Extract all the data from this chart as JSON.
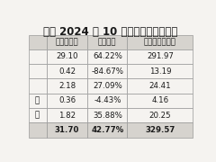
{
  "title": "公司 2024 年 10 月发电量完成情况表",
  "col_headers": [
    "当月发电量",
    "同比变动",
    "本年累计发电量"
  ],
  "row_labels": [
    "",
    "",
    "",
    "包",
    "次",
    ""
  ],
  "rows": [
    [
      "29.10",
      "64.22%",
      "291.97"
    ],
    [
      "0.42",
      "-84.67%",
      "13.19"
    ],
    [
      "2.18",
      "27.09%",
      "24.41"
    ],
    [
      "0.36",
      "-4.43%",
      "4.16"
    ],
    [
      "1.82",
      "35.88%",
      "20.25"
    ],
    [
      "31.70",
      "42.77%",
      "329.57"
    ]
  ],
  "bg_color": "#f5f3f0",
  "header_bg": "#d6d3ce",
  "last_row_bg": "#d6d3ce",
  "data_bg": "#f5f3f0",
  "border_color": "#999999",
  "text_color": "#1a1a1a",
  "title_fontsize": 8.5,
  "cell_fontsize": 6.2,
  "header_fontsize": 6.2
}
